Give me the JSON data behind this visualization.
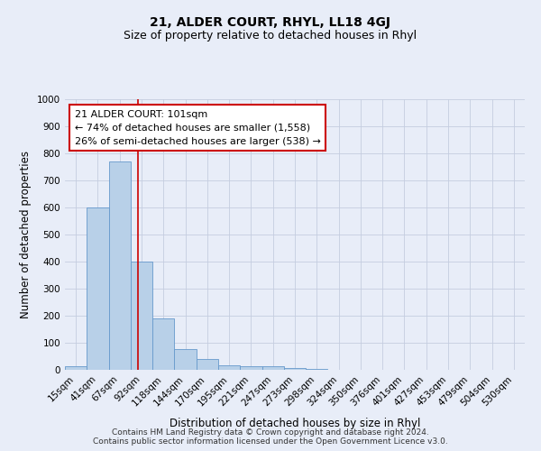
{
  "title": "21, ALDER COURT, RHYL, LL18 4GJ",
  "subtitle": "Size of property relative to detached houses in Rhyl",
  "xlabel": "Distribution of detached houses by size in Rhyl",
  "ylabel": "Number of detached properties",
  "footer_line1": "Contains HM Land Registry data © Crown copyright and database right 2024.",
  "footer_line2": "Contains public sector information licensed under the Open Government Licence v3.0.",
  "bar_labels": [
    "15sqm",
    "41sqm",
    "67sqm",
    "92sqm",
    "118sqm",
    "144sqm",
    "170sqm",
    "195sqm",
    "221sqm",
    "247sqm",
    "273sqm",
    "298sqm",
    "324sqm",
    "350sqm",
    "376sqm",
    "401sqm",
    "427sqm",
    "453sqm",
    "479sqm",
    "504sqm",
    "530sqm"
  ],
  "bar_values": [
    15,
    600,
    770,
    400,
    190,
    77,
    40,
    18,
    12,
    12,
    8,
    5,
    0,
    0,
    0,
    0,
    0,
    0,
    0,
    0,
    0
  ],
  "bar_color": "#b8d0e8",
  "bar_edge_color": "#6699cc",
  "vline_x": 3.35,
  "annotation_text_line1": "21 ALDER COURT: 101sqm",
  "annotation_text_line2": "← 74% of detached houses are smaller (1,558)",
  "annotation_text_line3": "26% of semi-detached houses are larger (538) →",
  "annotation_box_facecolor": "#ffffff",
  "annotation_box_edgecolor": "#cc0000",
  "vline_color": "#cc0000",
  "ylim": [
    0,
    1000
  ],
  "background_color": "#e8edf8",
  "plot_bg_color": "#e8edf8",
  "grid_color": "#c5cde0",
  "title_fontsize": 10,
  "subtitle_fontsize": 9,
  "axis_label_fontsize": 8.5,
  "tick_fontsize": 7.5,
  "annotation_fontsize": 8,
  "footer_fontsize": 6.5
}
